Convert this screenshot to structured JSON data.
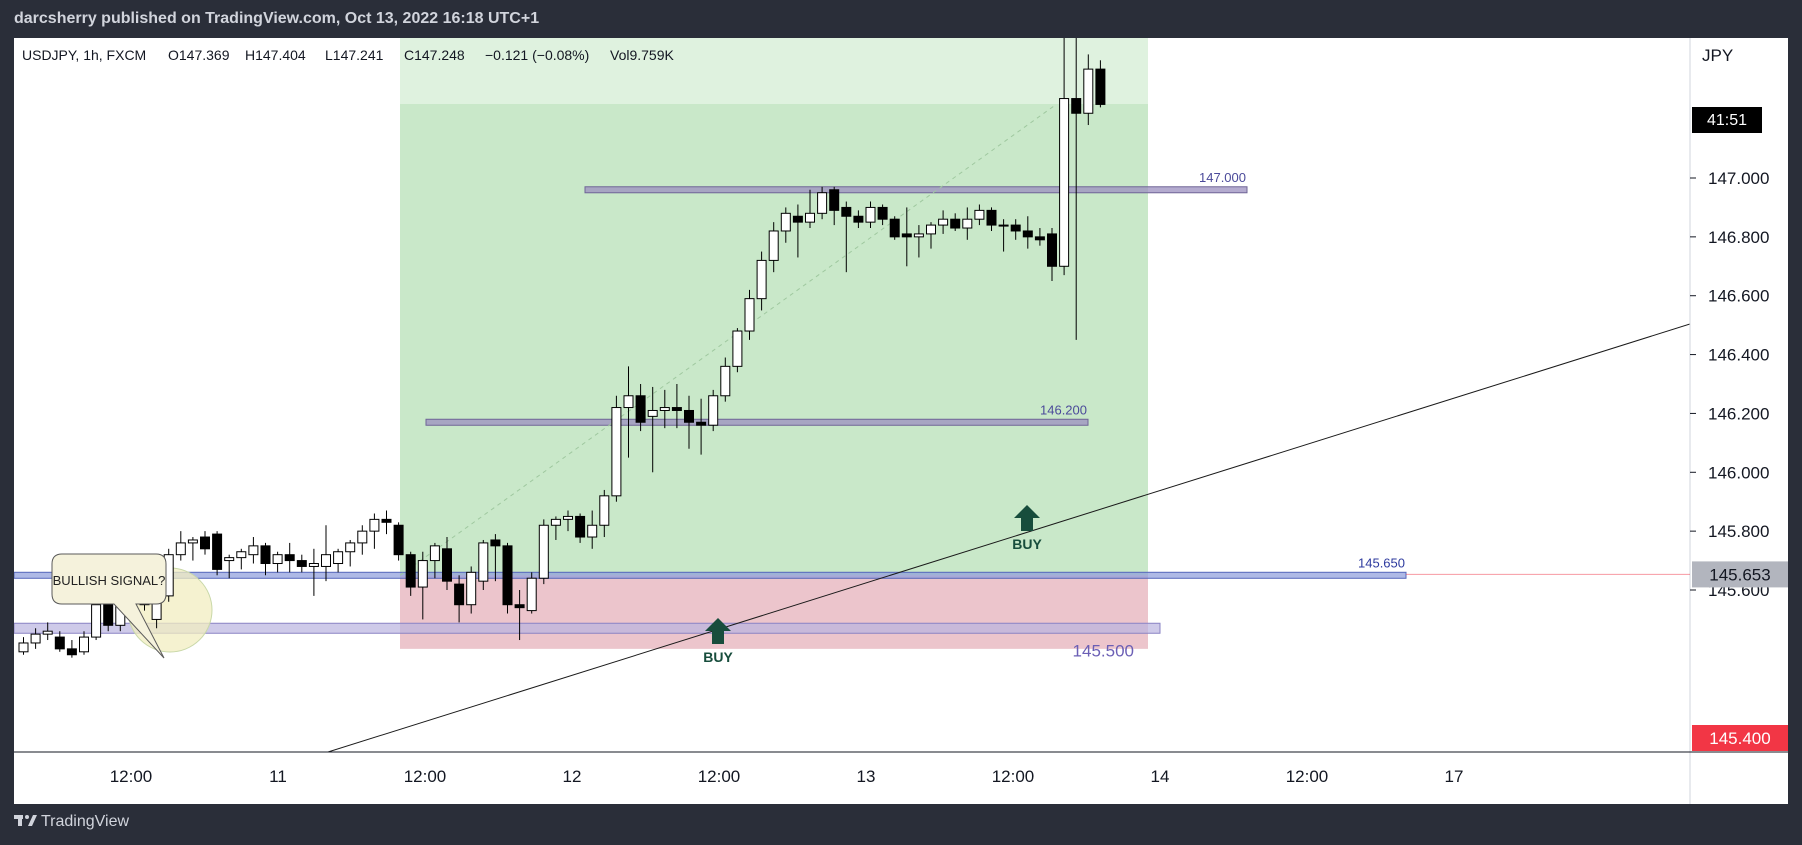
{
  "header": {
    "publisher": "darcsherry published on TradingView.com, Oct 13, 2022 16:18 UTC+1"
  },
  "footer": {
    "brand": "TradingView"
  },
  "legend": {
    "symbol": "USDJPY, 1h, FXCM",
    "open": "O147.369",
    "high": "H147.404",
    "low": "L147.241",
    "close": "C147.248",
    "change": "−0.121 (−0.08%)",
    "volume": "Vol9.759K"
  },
  "price_axis": {
    "currency": "JPY",
    "countdown": "41:51",
    "current_price": "145.653",
    "stop_price": "145.400"
  },
  "colors": {
    "up": "#ffffff",
    "down": "#000000",
    "profit": "#c9e8c9",
    "loss": "#ecc5cc",
    "level": "#9b8fbf",
    "accent": "#2962ff"
  },
  "chart_data": {
    "type": "candlestick",
    "symbol": "USDJPY",
    "interval": "1h",
    "y_ticks": [
      "146.600",
      "146.400",
      "146.200",
      "146.000",
      "145.800",
      "145.600",
      "147.000",
      "146.800"
    ],
    "x_ticks": [
      "12:00",
      "11",
      "12:00",
      "12",
      "12:00",
      "13",
      "12:00",
      "14",
      "12:00",
      "17"
    ],
    "levels": [
      {
        "label": "147.000",
        "price": 146.96
      },
      {
        "label": "146.200",
        "price": 146.17
      },
      {
        "label": "145.650",
        "price": 145.65
      },
      {
        "label": "145.500",
        "price": 145.47
      }
    ],
    "position": {
      "entry": 145.65,
      "stop": 145.4,
      "target": 147.55
    },
    "annotations": [
      {
        "text": "BULLISH SIGNAL?"
      },
      {
        "text": "BUY"
      },
      {
        "text": "BUY"
      }
    ],
    "candles": [
      {
        "o": 145.39,
        "h": 145.44,
        "l": 145.38,
        "c": 145.42
      },
      {
        "o": 145.42,
        "h": 145.47,
        "l": 145.4,
        "c": 145.45
      },
      {
        "o": 145.45,
        "h": 145.49,
        "l": 145.43,
        "c": 145.46
      },
      {
        "o": 145.44,
        "h": 145.46,
        "l": 145.39,
        "c": 145.4
      },
      {
        "o": 145.4,
        "h": 145.43,
        "l": 145.37,
        "c": 145.38
      },
      {
        "o": 145.39,
        "h": 145.46,
        "l": 145.38,
        "c": 145.44
      },
      {
        "o": 145.44,
        "h": 145.58,
        "l": 145.43,
        "c": 145.55
      },
      {
        "o": 145.55,
        "h": 145.57,
        "l": 145.46,
        "c": 145.48
      },
      {
        "o": 145.48,
        "h": 145.58,
        "l": 145.46,
        "c": 145.56
      },
      {
        "o": 145.56,
        "h": 145.61,
        "l": 145.52,
        "c": 145.59
      },
      {
        "o": 145.57,
        "h": 145.63,
        "l": 145.53,
        "c": 145.55
      },
      {
        "o": 145.5,
        "h": 145.62,
        "l": 145.47,
        "c": 145.58
      },
      {
        "o": 145.58,
        "h": 145.74,
        "l": 145.56,
        "c": 145.72
      },
      {
        "o": 145.72,
        "h": 145.8,
        "l": 145.7,
        "c": 145.76
      },
      {
        "o": 145.76,
        "h": 145.78,
        "l": 145.7,
        "c": 145.77
      },
      {
        "o": 145.78,
        "h": 145.8,
        "l": 145.72,
        "c": 145.74
      },
      {
        "o": 145.79,
        "h": 145.8,
        "l": 145.65,
        "c": 145.67
      },
      {
        "o": 145.7,
        "h": 145.72,
        "l": 145.64,
        "c": 145.71
      },
      {
        "o": 145.71,
        "h": 145.74,
        "l": 145.67,
        "c": 145.73
      },
      {
        "o": 145.72,
        "h": 145.78,
        "l": 145.69,
        "c": 145.75
      },
      {
        "o": 145.75,
        "h": 145.76,
        "l": 145.65,
        "c": 145.69
      },
      {
        "o": 145.69,
        "h": 145.73,
        "l": 145.66,
        "c": 145.72
      },
      {
        "o": 145.72,
        "h": 145.76,
        "l": 145.66,
        "c": 145.7
      },
      {
        "o": 145.7,
        "h": 145.72,
        "l": 145.66,
        "c": 145.68
      },
      {
        "o": 145.68,
        "h": 145.74,
        "l": 145.58,
        "c": 145.69
      },
      {
        "o": 145.68,
        "h": 145.82,
        "l": 145.63,
        "c": 145.72
      },
      {
        "o": 145.69,
        "h": 145.74,
        "l": 145.66,
        "c": 145.73
      },
      {
        "o": 145.73,
        "h": 145.77,
        "l": 145.68,
        "c": 145.76
      },
      {
        "o": 145.76,
        "h": 145.82,
        "l": 145.72,
        "c": 145.8
      },
      {
        "o": 145.8,
        "h": 145.86,
        "l": 145.74,
        "c": 145.84
      },
      {
        "o": 145.84,
        "h": 145.87,
        "l": 145.79,
        "c": 145.83
      },
      {
        "o": 145.82,
        "h": 145.83,
        "l": 145.7,
        "c": 145.72
      },
      {
        "o": 145.72,
        "h": 145.73,
        "l": 145.58,
        "c": 145.61
      },
      {
        "o": 145.61,
        "h": 145.73,
        "l": 145.5,
        "c": 145.7
      },
      {
        "o": 145.7,
        "h": 145.76,
        "l": 145.64,
        "c": 145.75
      },
      {
        "o": 145.74,
        "h": 145.78,
        "l": 145.6,
        "c": 145.63
      },
      {
        "o": 145.62,
        "h": 145.65,
        "l": 145.49,
        "c": 145.55
      },
      {
        "o": 145.55,
        "h": 145.68,
        "l": 145.52,
        "c": 145.66
      },
      {
        "o": 145.63,
        "h": 145.77,
        "l": 145.6,
        "c": 145.76
      },
      {
        "o": 145.77,
        "h": 145.79,
        "l": 145.63,
        "c": 145.75
      },
      {
        "o": 145.75,
        "h": 145.76,
        "l": 145.52,
        "c": 145.55
      },
      {
        "o": 145.55,
        "h": 145.6,
        "l": 145.43,
        "c": 145.54
      },
      {
        "o": 145.53,
        "h": 145.66,
        "l": 145.52,
        "c": 145.64
      },
      {
        "o": 145.64,
        "h": 145.84,
        "l": 145.62,
        "c": 145.82
      },
      {
        "o": 145.82,
        "h": 145.85,
        "l": 145.77,
        "c": 145.84
      },
      {
        "o": 145.84,
        "h": 145.87,
        "l": 145.8,
        "c": 145.85
      },
      {
        "o": 145.85,
        "h": 145.86,
        "l": 145.76,
        "c": 145.78
      },
      {
        "o": 145.78,
        "h": 145.87,
        "l": 145.74,
        "c": 145.82
      },
      {
        "o": 145.82,
        "h": 145.94,
        "l": 145.78,
        "c": 145.92
      },
      {
        "o": 145.92,
        "h": 146.26,
        "l": 145.9,
        "c": 146.22
      },
      {
        "o": 146.22,
        "h": 146.36,
        "l": 146.05,
        "c": 146.26
      },
      {
        "o": 146.26,
        "h": 146.3,
        "l": 146.14,
        "c": 146.17
      },
      {
        "o": 146.19,
        "h": 146.29,
        "l": 146.0,
        "c": 146.21
      },
      {
        "o": 146.21,
        "h": 146.28,
        "l": 146.15,
        "c": 146.22
      },
      {
        "o": 146.22,
        "h": 146.3,
        "l": 146.15,
        "c": 146.21
      },
      {
        "o": 146.21,
        "h": 146.26,
        "l": 146.08,
        "c": 146.17
      },
      {
        "o": 146.17,
        "h": 146.25,
        "l": 146.06,
        "c": 146.16
      },
      {
        "o": 146.16,
        "h": 146.28,
        "l": 146.14,
        "c": 146.26
      },
      {
        "o": 146.26,
        "h": 146.39,
        "l": 146.24,
        "c": 146.36
      },
      {
        "o": 146.36,
        "h": 146.49,
        "l": 146.34,
        "c": 146.48
      },
      {
        "o": 146.48,
        "h": 146.62,
        "l": 146.45,
        "c": 146.59
      },
      {
        "o": 146.59,
        "h": 146.75,
        "l": 146.55,
        "c": 146.72
      },
      {
        "o": 146.72,
        "h": 146.85,
        "l": 146.68,
        "c": 146.82
      },
      {
        "o": 146.82,
        "h": 146.9,
        "l": 146.78,
        "c": 146.88
      },
      {
        "o": 146.87,
        "h": 146.91,
        "l": 146.73,
        "c": 146.85
      },
      {
        "o": 146.85,
        "h": 146.96,
        "l": 146.83,
        "c": 146.88
      },
      {
        "o": 146.88,
        "h": 146.97,
        "l": 146.86,
        "c": 146.95
      },
      {
        "o": 146.96,
        "h": 146.97,
        "l": 146.84,
        "c": 146.89
      },
      {
        "o": 146.9,
        "h": 146.92,
        "l": 146.68,
        "c": 146.87
      },
      {
        "o": 146.87,
        "h": 146.89,
        "l": 146.83,
        "c": 146.85
      },
      {
        "o": 146.85,
        "h": 146.92,
        "l": 146.83,
        "c": 146.9
      },
      {
        "o": 146.9,
        "h": 146.91,
        "l": 146.84,
        "c": 146.86
      },
      {
        "o": 146.86,
        "h": 146.87,
        "l": 146.79,
        "c": 146.8
      },
      {
        "o": 146.81,
        "h": 146.9,
        "l": 146.7,
        "c": 146.8
      },
      {
        "o": 146.8,
        "h": 146.84,
        "l": 146.73,
        "c": 146.81
      },
      {
        "o": 146.81,
        "h": 146.85,
        "l": 146.76,
        "c": 146.84
      },
      {
        "o": 146.84,
        "h": 146.89,
        "l": 146.81,
        "c": 146.86
      },
      {
        "o": 146.86,
        "h": 146.88,
        "l": 146.82,
        "c": 146.83
      },
      {
        "o": 146.83,
        "h": 146.9,
        "l": 146.79,
        "c": 146.86
      },
      {
        "o": 146.86,
        "h": 146.91,
        "l": 146.84,
        "c": 146.89
      },
      {
        "o": 146.89,
        "h": 146.9,
        "l": 146.82,
        "c": 146.84
      },
      {
        "o": 146.84,
        "h": 146.86,
        "l": 146.75,
        "c": 146.84
      },
      {
        "o": 146.84,
        "h": 146.86,
        "l": 146.79,
        "c": 146.82
      },
      {
        "o": 146.82,
        "h": 146.87,
        "l": 146.76,
        "c": 146.8
      },
      {
        "o": 146.8,
        "h": 146.83,
        "l": 146.77,
        "c": 146.79
      },
      {
        "o": 146.81,
        "h": 146.83,
        "l": 146.65,
        "c": 146.7
      },
      {
        "o": 146.7,
        "h": 147.55,
        "l": 146.67,
        "c": 147.27
      },
      {
        "o": 147.27,
        "h": 147.55,
        "l": 146.45,
        "c": 147.22
      },
      {
        "o": 147.22,
        "h": 147.42,
        "l": 147.18,
        "c": 147.37
      },
      {
        "o": 147.37,
        "h": 147.4,
        "l": 147.24,
        "c": 147.25
      }
    ]
  }
}
